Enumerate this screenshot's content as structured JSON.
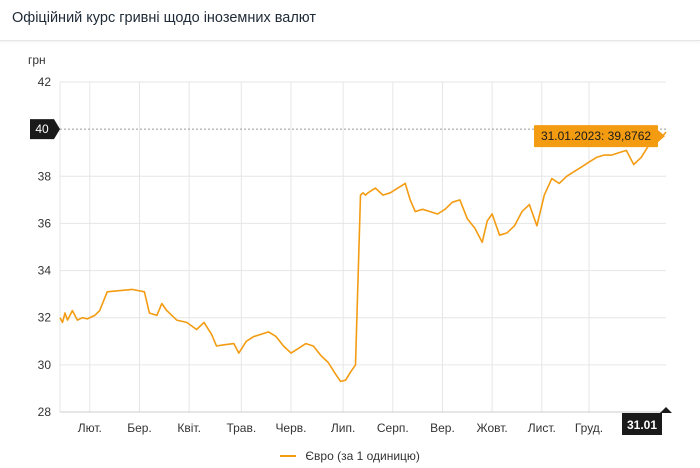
{
  "header": {
    "title": "Офіційний курс гривні щодо іноземних валют"
  },
  "colors": {
    "line": "#f39c12",
    "grid": "#e6e6e6",
    "badge_dark": "#1a1a1a",
    "tooltip": "#f39c12"
  },
  "chart_data": {
    "type": "line",
    "title": "Офіційний курс гривні щодо іноземних валют",
    "ylabel": "грн",
    "ylim": [
      28,
      42
    ],
    "yticks": [
      28,
      30,
      32,
      34,
      36,
      38,
      42
    ],
    "y_highlight_label": "40",
    "y_highlight_value": 40,
    "x_start": "2022-06-01",
    "x_end": "2023-01-31",
    "xticks": [
      {
        "label": "Лют.",
        "date": "2022-06-13"
      },
      {
        "label": "Бер.",
        "date": "2022-07-03"
      },
      {
        "label": "Квіт.",
        "date": "2022-07-23"
      },
      {
        "label": "Трав.",
        "date": "2022-08-13"
      },
      {
        "label": "Черв.",
        "date": "2022-09-02"
      },
      {
        "label": "Лип.",
        "date": "2022-09-23"
      },
      {
        "label": "Серп.",
        "date": "2022-10-13"
      },
      {
        "label": "Вер.",
        "date": "2022-11-02"
      },
      {
        "label": "Жовт.",
        "date": "2022-11-22"
      },
      {
        "label": "Лист.",
        "date": "2022-12-12"
      },
      {
        "label": "Груд.",
        "date": "2022-12-31"
      }
    ],
    "x_highlight_label": "31.01",
    "tooltip": "31.01.2023: 39,8762",
    "legend": "Євро (за 1 одиницю)",
    "series": [
      {
        "name": "Євро (за 1 одиницю)",
        "x": [
          "2022-06-01",
          "2022-06-02",
          "2022-06-03",
          "2022-06-04",
          "2022-06-05",
          "2022-06-06",
          "2022-06-08",
          "2022-06-10",
          "2022-06-12",
          "2022-06-15",
          "2022-06-17",
          "2022-06-20",
          "2022-06-30",
          "2022-07-05",
          "2022-07-07",
          "2022-07-10",
          "2022-07-12",
          "2022-07-14",
          "2022-07-18",
          "2022-07-22",
          "2022-07-26",
          "2022-07-29",
          "2022-08-01",
          "2022-08-03",
          "2022-08-06",
          "2022-08-10",
          "2022-08-12",
          "2022-08-15",
          "2022-08-18",
          "2022-08-21",
          "2022-08-24",
          "2022-08-27",
          "2022-08-30",
          "2022-09-02",
          "2022-09-05",
          "2022-09-08",
          "2022-09-11",
          "2022-09-14",
          "2022-09-17",
          "2022-09-20",
          "2022-09-22",
          "2022-09-24",
          "2022-09-26",
          "2022-09-28",
          "2022-09-30",
          "2022-10-01",
          "2022-10-02",
          "2022-10-03",
          "2022-10-06",
          "2022-10-09",
          "2022-10-12",
          "2022-10-15",
          "2022-10-18",
          "2022-10-20",
          "2022-10-22",
          "2022-10-25",
          "2022-10-28",
          "2022-10-31",
          "2022-11-03",
          "2022-11-06",
          "2022-11-09",
          "2022-11-12",
          "2022-11-15",
          "2022-11-18",
          "2022-11-20",
          "2022-11-22",
          "2022-11-25",
          "2022-11-28",
          "2022-12-01",
          "2022-12-04",
          "2022-12-07",
          "2022-12-10",
          "2022-12-13",
          "2022-12-16",
          "2022-12-19",
          "2022-12-22",
          "2022-12-25",
          "2022-12-28",
          "2022-12-31",
          "2023-01-03",
          "2023-01-06",
          "2023-01-09",
          "2023-01-12",
          "2023-01-15",
          "2023-01-18",
          "2023-01-21",
          "2023-01-24",
          "2023-01-27",
          "2023-01-31"
        ],
        "values": [
          32.0,
          31.8,
          32.2,
          31.9,
          32.1,
          32.3,
          31.9,
          32.0,
          31.95,
          32.1,
          32.3,
          33.1,
          33.2,
          33.1,
          32.2,
          32.1,
          32.6,
          32.3,
          31.9,
          31.8,
          31.5,
          31.8,
          31.3,
          30.8,
          30.85,
          30.9,
          30.5,
          31.0,
          31.2,
          31.3,
          31.4,
          31.2,
          30.8,
          30.5,
          30.7,
          30.9,
          30.8,
          30.4,
          30.1,
          29.6,
          29.3,
          29.35,
          29.7,
          30.0,
          37.2,
          37.3,
          37.2,
          37.3,
          37.5,
          37.2,
          37.3,
          37.5,
          37.7,
          37.0,
          36.5,
          36.6,
          36.5,
          36.4,
          36.6,
          36.9,
          37.0,
          36.2,
          35.8,
          35.2,
          36.1,
          36.4,
          35.5,
          35.6,
          35.9,
          36.5,
          36.8,
          35.9,
          37.2,
          37.9,
          37.7,
          38.0,
          38.2,
          38.4,
          38.6,
          38.8,
          38.9,
          38.9,
          39.0,
          39.1,
          38.5,
          38.8,
          39.3,
          39.4,
          39.8762
        ]
      }
    ]
  }
}
